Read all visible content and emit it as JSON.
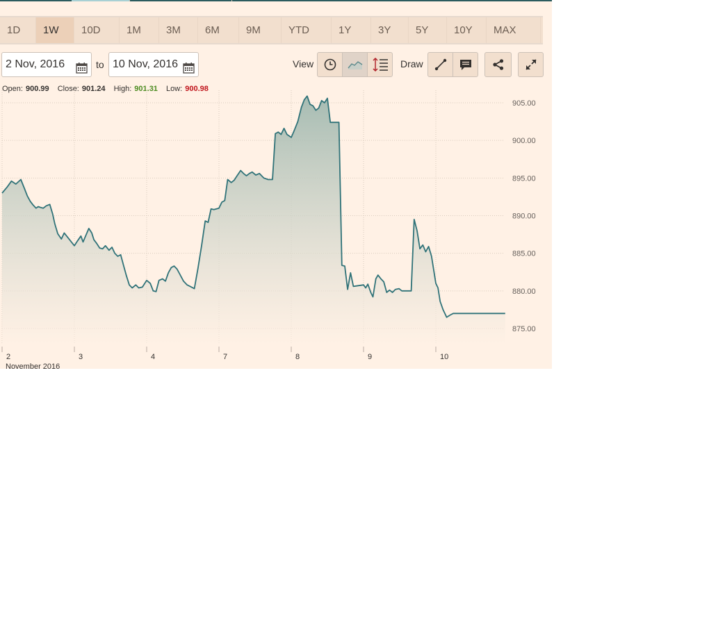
{
  "ranges": [
    "1D",
    "1W",
    "10D",
    "1M",
    "3M",
    "6M",
    "9M",
    "YTD",
    "1Y",
    "3Y",
    "5Y",
    "10Y",
    "MAX"
  ],
  "active_range": "1W",
  "date_from": "2 Nov, 2016",
  "to_label": "to",
  "date_to": "10 Nov, 2016",
  "view_label": "View",
  "draw_label": "Draw",
  "view_buttons": [
    "clock-icon",
    "line-chart-icon",
    "comparison-icon"
  ],
  "draw_buttons": [
    "draw-line-icon",
    "annotation-icon"
  ],
  "share_icon": "share-icon",
  "fullscreen_icon": "expand-icon",
  "ohlc": {
    "open_label": "Open:",
    "open": "900.99",
    "close_label": "Close:",
    "close": "901.24",
    "high_label": "High:",
    "high": "901.31",
    "low_label": "Low:",
    "low": "900.98"
  },
  "colors": {
    "line": "#2f7278",
    "high_value": "#4b8b20",
    "low_value": "#c0141b",
    "background": "#fff1e5"
  },
  "chart_data": {
    "type": "area",
    "x_ticks": [
      "2",
      "3",
      "4",
      "7",
      "8",
      "9",
      "10"
    ],
    "x_sublabel": "November 2016",
    "y_ticks": [
      "875.00",
      "880.00",
      "885.00",
      "890.00",
      "895.00",
      "900.00",
      "905.00"
    ],
    "ylim": [
      873,
      905.5
    ],
    "y_axis_side": "right",
    "grid": true,
    "series": [
      {
        "x": [
          0.0,
          0.07,
          0.13,
          0.19,
          0.26,
          0.31,
          0.35,
          0.39,
          0.43,
          0.47,
          0.5,
          0.53,
          0.57,
          0.61,
          0.66,
          0.7,
          0.73,
          0.77,
          0.82,
          0.86,
          1.0,
          1.04,
          1.09,
          1.12,
          1.16,
          1.2,
          1.24,
          1.27,
          1.31,
          1.35,
          1.39,
          1.43,
          1.48,
          1.52,
          1.56,
          1.6,
          1.64,
          1.68,
          1.72,
          1.76,
          1.8,
          1.85,
          1.89,
          1.94,
          2.0,
          2.05,
          2.09,
          2.13,
          2.17,
          2.22,
          2.26,
          2.3,
          2.34,
          2.38,
          2.42,
          2.46,
          2.51,
          2.56,
          2.6,
          2.66,
          2.71,
          2.76,
          2.81,
          2.85,
          2.89,
          2.93,
          3.0,
          3.04,
          3.08,
          3.12,
          3.17,
          3.21,
          3.25,
          3.3,
          3.34,
          3.38,
          3.42,
          3.46,
          3.51,
          3.56,
          3.62,
          3.68,
          3.74,
          3.78,
          3.82,
          3.86,
          3.9,
          3.94,
          4.0,
          4.04,
          4.09,
          4.14,
          4.18,
          4.22,
          4.26,
          4.3,
          4.34,
          4.38,
          4.42,
          4.46,
          4.5,
          4.54,
          4.58,
          4.62,
          4.66,
          4.7,
          4.74,
          4.78,
          4.82,
          4.86,
          5.0,
          5.03,
          5.06,
          5.1,
          5.13,
          5.17,
          5.2,
          5.24,
          5.28,
          5.32,
          5.36,
          5.4,
          5.44,
          5.49,
          5.53,
          5.57,
          5.62,
          5.66,
          5.7,
          5.74,
          5.78,
          5.82,
          5.86,
          5.9,
          5.94,
          6.0,
          6.03,
          6.06,
          6.1,
          6.15,
          6.2,
          6.24,
          6.28,
          6.32,
          6.36,
          6.4,
          6.44,
          6.48,
          6.52,
          6.56,
          6.6,
          6.64,
          6.68,
          6.72,
          6.76,
          6.8,
          6.84,
          6.88,
          6.92,
          6.96
        ],
        "y": [
          893.0,
          893.8,
          894.6,
          894.2,
          894.8,
          893.6,
          892.6,
          891.9,
          891.4,
          891.0,
          891.2,
          891.1,
          891.0,
          891.3,
          891.5,
          890.2,
          888.9,
          887.6,
          886.9,
          887.7,
          886.0,
          886.6,
          887.3,
          886.5,
          887.4,
          888.3,
          887.7,
          886.8,
          886.3,
          885.7,
          885.6,
          886.0,
          885.4,
          885.8,
          885.0,
          884.6,
          884.8,
          883.4,
          882.0,
          880.8,
          880.4,
          880.8,
          880.4,
          880.5,
          881.4,
          881.0,
          880.0,
          879.9,
          881.4,
          881.6,
          881.3,
          882.4,
          883.1,
          883.3,
          882.9,
          882.2,
          881.3,
          880.8,
          880.6,
          880.3,
          883.0,
          886.0,
          889.3,
          889.1,
          890.9,
          890.8,
          891.0,
          891.8,
          892.0,
          894.8,
          894.4,
          894.7,
          895.3,
          896.0,
          895.6,
          895.3,
          895.6,
          895.8,
          895.4,
          895.6,
          895.0,
          894.8,
          894.8,
          900.9,
          901.1,
          900.8,
          901.6,
          900.8,
          900.4,
          901.3,
          902.5,
          904.4,
          905.4,
          905.9,
          904.8,
          904.6,
          904.0,
          904.3,
          905.3,
          905.0,
          905.6,
          902.4,
          902.4,
          902.4,
          902.4,
          883.4,
          883.3,
          880.2,
          882.4,
          880.6,
          880.8,
          880.4,
          880.9,
          879.8,
          879.2,
          881.6,
          882.1,
          881.6,
          881.2,
          879.8,
          880.1,
          879.8,
          880.2,
          880.3,
          880.0,
          880.0,
          880.0,
          880.0,
          889.5,
          888.0,
          885.6,
          886.1,
          885.2,
          885.9,
          884.6,
          881.0,
          880.4,
          878.6,
          877.5,
          876.5,
          876.8,
          877.0,
          877.0,
          877.0,
          877.0,
          877.0,
          877.0,
          877.0,
          877.0,
          877.0,
          877.0,
          877.0,
          877.0,
          877.0,
          877.0,
          877.0,
          877.0,
          877.0,
          877.0,
          877.0
        ]
      }
    ]
  }
}
